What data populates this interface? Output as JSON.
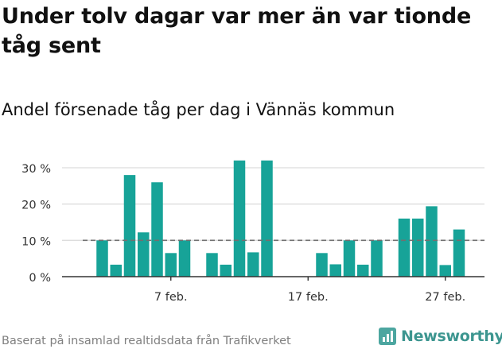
{
  "headline": "Under tolv dagar var mer än var tionde tåg sent",
  "subheadline": "Andel försenade tåg per dag i Vännäs kommun",
  "source": "Baserat på insamlad realtidsdata från Trafikverket",
  "brand": "Newsworthy",
  "colors": {
    "bar": "#17a398",
    "reference_line": "#707070",
    "grid": "#dddddd",
    "axis": "#333333",
    "brand": "#3d9690"
  },
  "chart_data": {
    "type": "bar",
    "title": "Under tolv dagar var mer än var tionde tåg sent",
    "subtitle": "Andel försenade tåg per dag i Vännäs kommun",
    "x_unit": "day of February",
    "categories": [
      1,
      2,
      3,
      4,
      5,
      6,
      7,
      8,
      9,
      10,
      11,
      12,
      13,
      14,
      15,
      16,
      17,
      18,
      19,
      20,
      21,
      22,
      23,
      24,
      25,
      26,
      27,
      28
    ],
    "values": [
      null,
      10,
      3.3,
      28,
      12.2,
      26,
      6.5,
      10,
      null,
      6.5,
      3.3,
      32,
      6.7,
      32,
      null,
      null,
      null,
      6.5,
      3.4,
      10,
      3.3,
      10,
      null,
      16,
      16,
      19.4,
      3.2,
      13
    ],
    "x_ticks": [
      {
        "day": 7,
        "label": "7 feb."
      },
      {
        "day": 17,
        "label": "17 feb."
      },
      {
        "day": 27,
        "label": "27 feb."
      }
    ],
    "y_ticks": [
      {
        "value": 0,
        "label": "0 %"
      },
      {
        "value": 10,
        "label": "10 %"
      },
      {
        "value": 20,
        "label": "20 %"
      },
      {
        "value": 30,
        "label": "30 %"
      }
    ],
    "ylim": [
      0,
      33
    ],
    "reference_line": {
      "value": 10,
      "style": "dashed"
    },
    "xlabel": "",
    "ylabel": "",
    "grid": true,
    "legend": "none"
  }
}
